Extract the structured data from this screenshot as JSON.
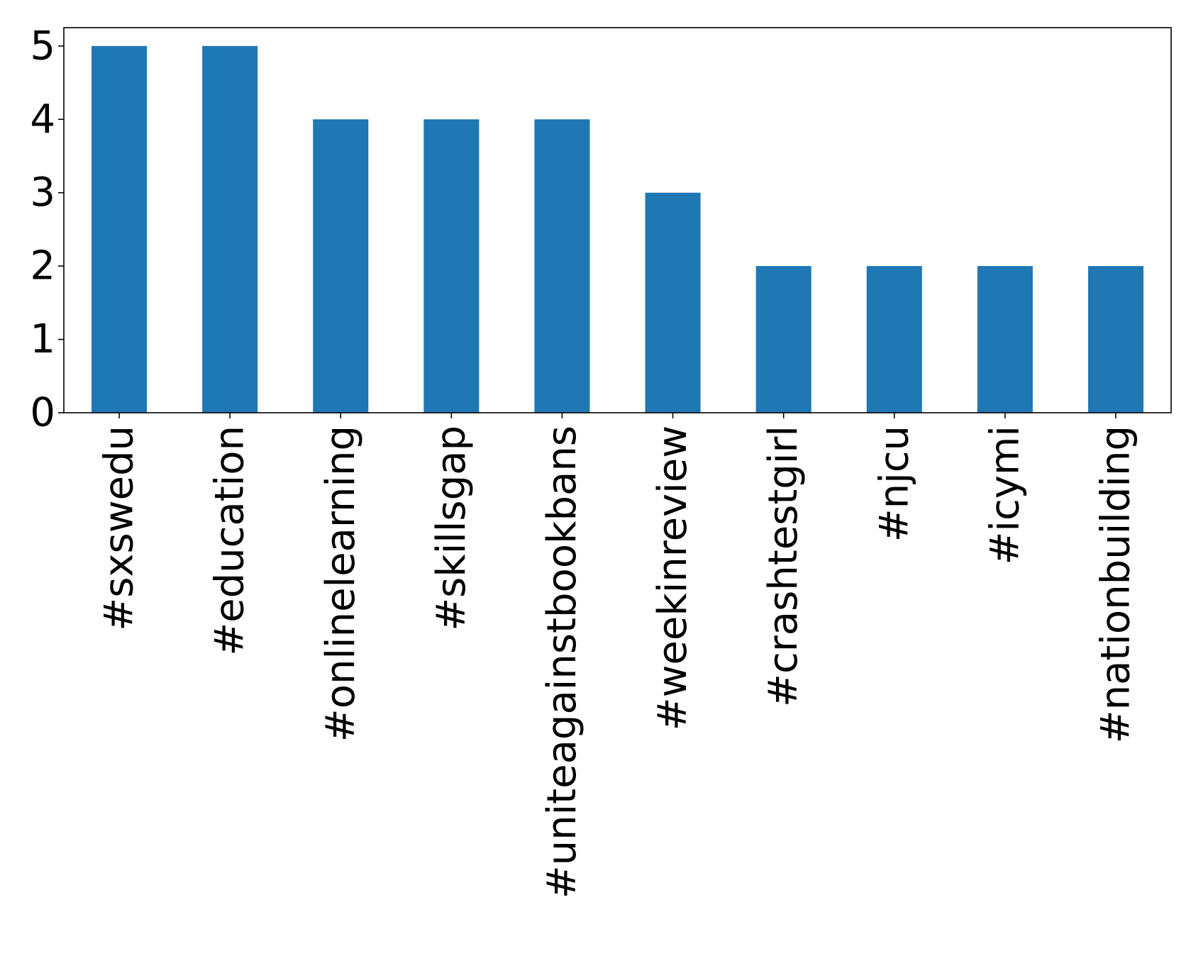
{
  "chart_data": {
    "type": "bar",
    "categories": [
      "#sxswedu",
      "#education",
      "#onlinelearning",
      "#skillsgap",
      "#uniteagainstbookbans",
      "#weekinreview",
      "#crashtestgirl",
      "#njcu",
      "#icymi",
      "#nationbuilding"
    ],
    "values": [
      5,
      5,
      4,
      4,
      4,
      3,
      2,
      2,
      2,
      2
    ],
    "yticks": [
      "0",
      "1",
      "2",
      "3",
      "4",
      "5"
    ],
    "ylim": [
      0,
      5.25
    ],
    "title": "",
    "xlabel": "",
    "ylabel": "",
    "grid": false,
    "bar_color": "#1f77b4"
  }
}
